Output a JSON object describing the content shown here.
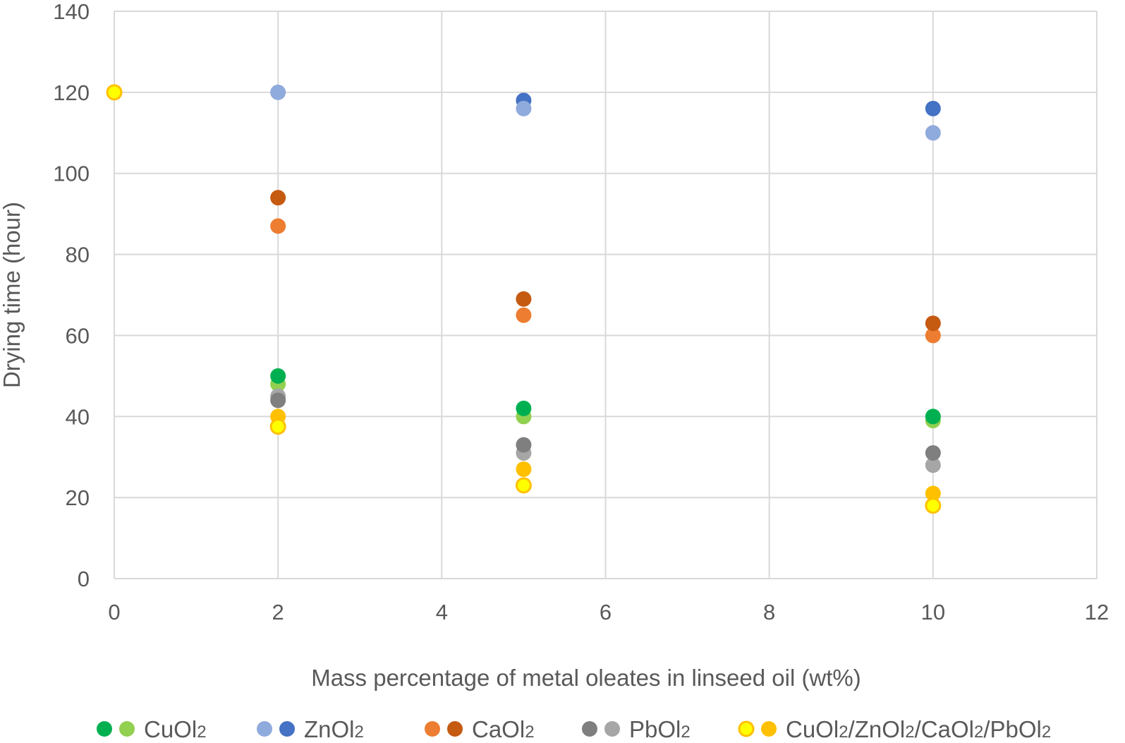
{
  "chart_data": {
    "type": "scatter",
    "title": "",
    "xlabel": "Mass percentage of metal oleates in linseed oil (wt%)",
    "ylabel": "Drying time (hour)",
    "xlim": [
      0,
      12
    ],
    "ylim": [
      0,
      140
    ],
    "xticks": [
      0,
      2,
      4,
      6,
      8,
      10,
      12
    ],
    "yticks": [
      0,
      20,
      40,
      60,
      80,
      100,
      120,
      140
    ],
    "grid": true,
    "legend_position": "bottom",
    "colors": {
      "cu_a": "#00b050",
      "cu_b": "#92d050",
      "zn_a": "#8faadc",
      "zn_b": "#4472c4",
      "ca_a": "#ed7d31",
      "ca_b": "#c55a11",
      "pb_a": "#7f7f7f",
      "pb_b": "#a6a6a6",
      "mix_a": "#ffff00",
      "mix_a_stroke": "#ffc000",
      "mix_b": "#ffc000",
      "grid": "#d9d9d9",
      "axis_text": "#595959"
    },
    "legend": [
      {
        "label": "CuOl",
        "sub": "2",
        "markers": [
          "cu_a",
          "cu_b"
        ]
      },
      {
        "label": "ZnOl",
        "sub": "2",
        "markers": [
          "zn_a",
          "zn_b"
        ]
      },
      {
        "label": "CaOl",
        "sub": "2",
        "markers": [
          "ca_a",
          "ca_b"
        ]
      },
      {
        "label": "PbOl",
        "sub": "2",
        "markers": [
          "pb_a",
          "pb_b"
        ]
      },
      {
        "label": "CuOl",
        "sub": "2",
        "label2": "/ZnOl",
        "sub2": "2",
        "label3": "/CaOl",
        "sub3": "2",
        "label4": "/PbOl",
        "sub4": "2",
        "markers": [
          "mix_a",
          "mix_b"
        ]
      }
    ],
    "series": [
      {
        "name": "CuOl2 (light)",
        "color": "cu_b",
        "points": [
          [
            2,
            48
          ],
          [
            5,
            40
          ],
          [
            10,
            39
          ]
        ]
      },
      {
        "name": "CuOl2 (dark)",
        "color": "cu_a",
        "points": [
          [
            2,
            50
          ],
          [
            5,
            42
          ],
          [
            10,
            40
          ]
        ]
      },
      {
        "name": "ZnOl2 (dark)",
        "color": "zn_b",
        "points": [
          [
            5,
            118
          ],
          [
            10,
            116
          ]
        ]
      },
      {
        "name": "ZnOl2 (light)",
        "color": "zn_a",
        "points": [
          [
            2,
            120
          ],
          [
            5,
            116
          ],
          [
            10,
            110
          ]
        ]
      },
      {
        "name": "CaOl2 (light)",
        "color": "ca_a",
        "points": [
          [
            2,
            87
          ],
          [
            5,
            65
          ],
          [
            10,
            60
          ]
        ]
      },
      {
        "name": "CaOl2 (dark)",
        "color": "ca_b",
        "points": [
          [
            2,
            94
          ],
          [
            5,
            69
          ],
          [
            10,
            63
          ]
        ]
      },
      {
        "name": "PbOl2 (light)",
        "color": "pb_b",
        "points": [
          [
            2,
            45
          ],
          [
            5,
            31
          ],
          [
            10,
            28
          ]
        ]
      },
      {
        "name": "PbOl2 (dark)",
        "color": "pb_a",
        "points": [
          [
            2,
            44
          ],
          [
            5,
            33
          ],
          [
            10,
            31
          ]
        ]
      },
      {
        "name": "Mix (orange)",
        "color": "mix_b",
        "points": [
          [
            2,
            40
          ],
          [
            5,
            27
          ],
          [
            10,
            21
          ]
        ]
      },
      {
        "name": "Mix (yellow)",
        "color": "mix_a",
        "stroke": "mix_a_stroke",
        "points": [
          [
            0,
            120
          ],
          [
            2,
            37.5
          ],
          [
            5,
            23
          ],
          [
            10,
            18
          ]
        ]
      }
    ]
  }
}
